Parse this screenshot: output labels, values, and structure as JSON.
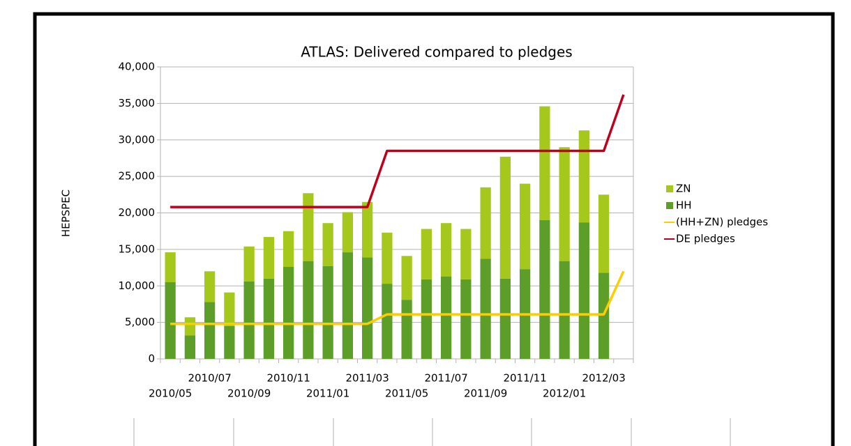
{
  "chart_data": {
    "type": "bar",
    "stacked": true,
    "title": "ATLAS: Delivered compared to pledges",
    "y_label": "HEPSPEC",
    "categories": [
      "2010/05",
      null,
      "2010/07",
      null,
      "2010/09",
      null,
      "2010/11",
      null,
      "2011/01",
      null,
      "2011/03",
      null,
      "2011/05",
      null,
      "2011/07",
      null,
      "2011/09",
      null,
      "2011/11",
      null,
      "2012/01",
      null,
      "2012/03",
      null
    ],
    "series": [
      {
        "name": "HH",
        "type": "bar",
        "color": "#5d9e28",
        "values": [
          10500,
          3200,
          7800,
          4500,
          10600,
          11000,
          12600,
          13400,
          12700,
          14600,
          13900,
          10300,
          8100,
          10900,
          11300,
          10900,
          13700,
          11000,
          12300,
          19000,
          13400,
          18700,
          11800,
          null
        ]
      },
      {
        "name": "ZN",
        "type": "bar",
        "color": "#a6c81c",
        "values": [
          4100,
          2500,
          4200,
          4600,
          4800,
          5700,
          4900,
          9300,
          5900,
          5500,
          7600,
          7000,
          6000,
          6900,
          7300,
          6900,
          9800,
          16700,
          11700,
          15600,
          15600,
          12600,
          10700,
          null
        ]
      },
      {
        "name": "(HH+ZN) pledges",
        "type": "line",
        "color": "#ffcc00",
        "values": [
          4800,
          4800,
          4800,
          4800,
          4800,
          4800,
          4800,
          4800,
          4800,
          4800,
          4800,
          6100,
          6100,
          6100,
          6100,
          6100,
          6100,
          6100,
          6100,
          6100,
          6100,
          6100,
          6100,
          12000
        ]
      },
      {
        "name": "DE pledges",
        "type": "line",
        "color": "#c0001a",
        "values": [
          20800,
          20800,
          20800,
          20800,
          20800,
          20800,
          20800,
          20800,
          20800,
          20800,
          20800,
          28500,
          28500,
          28500,
          28500,
          28500,
          28500,
          28500,
          28500,
          28500,
          28500,
          28500,
          28500,
          36200
        ]
      }
    ],
    "ylim": [
      0,
      40000
    ],
    "yticks": [
      0,
      {
        "value": 5000,
        "label": "5,000"
      },
      {
        "value": 10000,
        "label": "10,000"
      },
      {
        "value": 15000,
        "label": "15,000"
      },
      {
        "value": 20000,
        "label": "20,000"
      },
      {
        "value": 25000,
        "label": "25,000"
      },
      {
        "value": 30000,
        "label": "30,000"
      },
      {
        "value": 35000,
        "label": "35,000"
      },
      {
        "value": 40000,
        "label": "40,000"
      }
    ],
    "grid": true,
    "legend": "right"
  }
}
